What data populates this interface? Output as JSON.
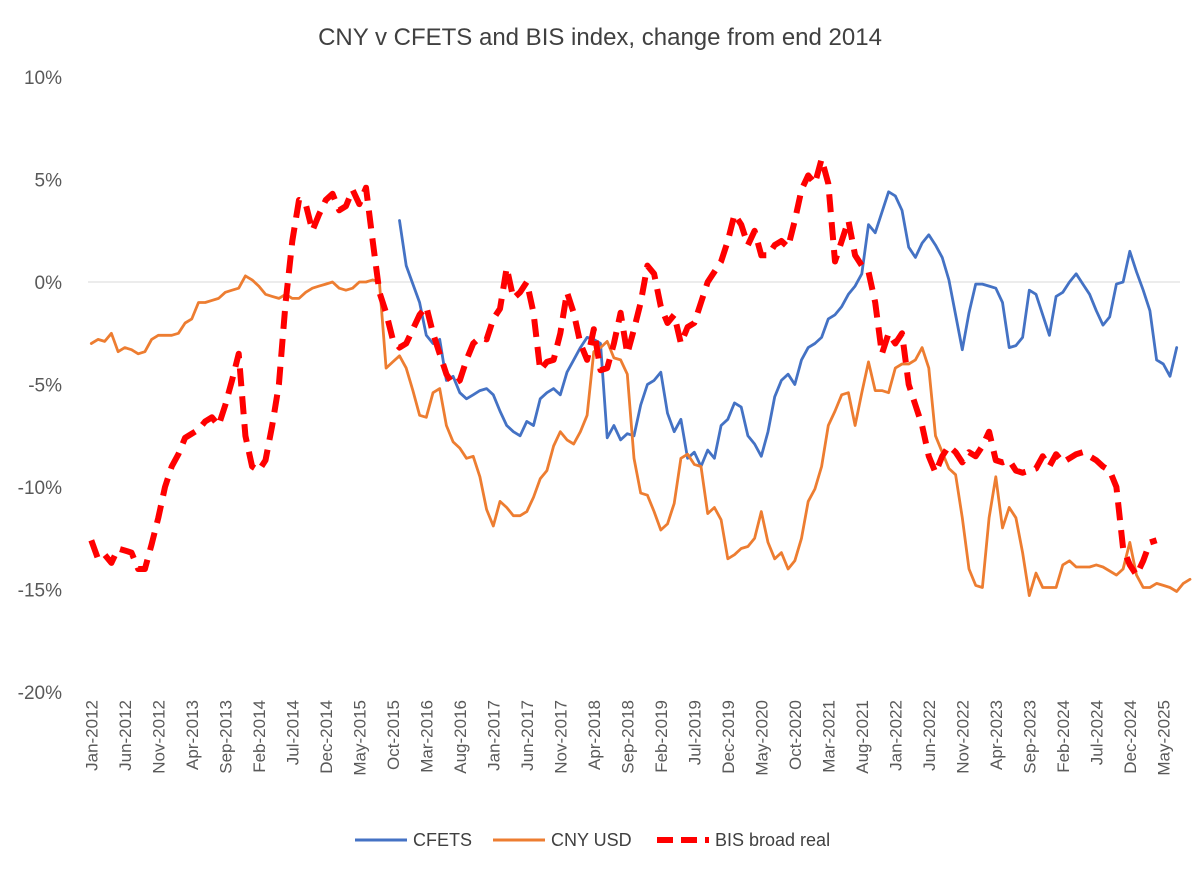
{
  "chart_data": {
    "type": "line",
    "title": "CNY v CFETS and BIS index, change from end 2014",
    "xlabel": "",
    "ylabel": "",
    "ylim": [
      -20,
      10
    ],
    "y_ticks": [
      -20,
      -15,
      -10,
      -5,
      0,
      5,
      10
    ],
    "y_tick_labels": [
      "-20%",
      "-15%",
      "-10%",
      "-5%",
      "0%",
      "5%",
      "10%"
    ],
    "x_start": "Jan-2012",
    "x_count": 163,
    "x_tick_labels": [
      "Jan-2012",
      "Jun-2012",
      "Nov-2012",
      "Apr-2013",
      "Sep-2013",
      "Feb-2014",
      "Jul-2014",
      "Dec-2014",
      "May-2015",
      "Oct-2015",
      "Mar-2016",
      "Aug-2016",
      "Jan-2017",
      "Jun-2017",
      "Nov-2017",
      "Apr-2018",
      "Sep-2018",
      "Feb-2019",
      "Jul-2019",
      "Dec-2019",
      "May-2020",
      "Oct-2020",
      "Mar-2021",
      "Aug-2021",
      "Jan-2022",
      "Jun-2022",
      "Nov-2022",
      "Apr-2023",
      "Sep-2023",
      "Feb-2024",
      "Jul-2024",
      "Dec-2024",
      "May-2025"
    ],
    "legend": "bottom",
    "series": [
      {
        "name": "CFETS",
        "color": "#4472C4",
        "style": "solid",
        "start_index": 46,
        "values": [
          3.0,
          0.8,
          -0.1,
          -1.0,
          -2.6,
          -3.0,
          -2.8,
          -4.8,
          -4.6,
          -5.4,
          -5.7,
          -5.5,
          -5.3,
          -5.2,
          -5.5,
          -6.3,
          -7.0,
          -7.3,
          -7.5,
          -6.8,
          -7.0,
          -5.7,
          -5.4,
          -5.2,
          -5.5,
          -4.4,
          -3.8,
          -3.2,
          -2.7,
          -2.8,
          -3.0,
          -7.6,
          -7.0,
          -7.7,
          -7.4,
          -7.5,
          -6.0,
          -5.0,
          -4.8,
          -4.4,
          -6.4,
          -7.3,
          -6.7,
          -8.6,
          -8.3,
          -9.0,
          -8.2,
          -8.6,
          -7.0,
          -6.7,
          -5.9,
          -6.1,
          -7.5,
          -7.9,
          -8.5,
          -7.3,
          -5.6,
          -4.8,
          -4.5,
          -5.0,
          -3.8,
          -3.2,
          -3.0,
          -2.7,
          -1.8,
          -1.6,
          -1.2,
          -0.6,
          -0.2,
          0.4,
          2.8,
          2.4,
          3.4,
          4.4,
          4.2,
          3.5,
          1.7,
          1.2,
          1.9,
          2.3,
          1.8,
          1.2,
          0.1,
          -1.6,
          -3.3,
          -1.5,
          -0.1,
          -0.1,
          -0.2,
          -0.3,
          -1.0,
          -3.2,
          -3.1,
          -2.7,
          -0.4,
          -0.6,
          -1.6,
          -2.6,
          -0.7,
          -0.5,
          0.0,
          0.4,
          -0.1,
          -0.6,
          -1.4,
          -2.1,
          -1.7,
          -0.1,
          0.0,
          1.5,
          0.5,
          -0.4,
          -1.4,
          -3.8,
          -4.0,
          -4.6,
          -3.2
        ]
      },
      {
        "name": "CNY USD",
        "color": "#ED7D31",
        "style": "solid",
        "start_index": 0,
        "values": [
          -3.0,
          -2.8,
          -2.9,
          -2.5,
          -3.4,
          -3.2,
          -3.3,
          -3.5,
          -3.4,
          -2.8,
          -2.6,
          -2.6,
          -2.6,
          -2.5,
          -2.0,
          -1.8,
          -1.0,
          -1.0,
          -0.9,
          -0.8,
          -0.5,
          -0.4,
          -0.3,
          0.3,
          0.1,
          -0.2,
          -0.6,
          -0.7,
          -0.8,
          -0.6,
          -0.8,
          -0.8,
          -0.5,
          -0.3,
          -0.2,
          -0.1,
          0.0,
          -0.3,
          -0.4,
          -0.3,
          0.0,
          0.0,
          0.1,
          0.0,
          -4.2,
          -3.9,
          -3.6,
          -4.2,
          -5.3,
          -6.5,
          -6.6,
          -5.4,
          -5.2,
          -7.0,
          -7.8,
          -8.1,
          -8.6,
          -8.5,
          -9.5,
          -11.1,
          -11.9,
          -10.7,
          -11.0,
          -11.4,
          -11.4,
          -11.2,
          -10.5,
          -9.6,
          -9.2,
          -8.0,
          -7.3,
          -7.7,
          -7.9,
          -7.3,
          -6.5,
          -3.4,
          -3.2,
          -2.9,
          -3.7,
          -3.8,
          -4.5,
          -8.6,
          -10.3,
          -10.4,
          -11.2,
          -12.1,
          -11.8,
          -10.8,
          -8.6,
          -8.4,
          -8.9,
          -9.0,
          -11.3,
          -11.0,
          -11.6,
          -13.5,
          -13.3,
          -13.0,
          -12.9,
          -12.5,
          -11.2,
          -12.7,
          -13.5,
          -13.2,
          -14.0,
          -13.6,
          -12.5,
          -10.7,
          -10.1,
          -9.0,
          -7.0,
          -6.3,
          -5.5,
          -5.4,
          -7.0,
          -5.4,
          -3.9,
          -5.3,
          -5.3,
          -5.4,
          -4.2,
          -4.0,
          -4.0,
          -3.8,
          -3.2,
          -4.2,
          -7.5,
          -8.3,
          -9.1,
          -9.4,
          -11.5,
          -14.0,
          -14.8,
          -14.9,
          -11.5,
          -9.5,
          -12.0,
          -11.0,
          -11.5,
          -13.2,
          -15.3,
          -14.2,
          -14.9,
          -14.9,
          -14.9,
          -13.8,
          -13.6,
          -13.9,
          -13.9,
          -13.9,
          -13.8,
          -13.9,
          -14.1,
          -14.3,
          -14.0,
          -12.7,
          -14.3,
          -14.9,
          -14.9,
          -14.7,
          -14.8,
          -14.9,
          -15.1,
          -14.7,
          -14.5
        ]
      },
      {
        "name": "BIS broad real",
        "color": "#FF0000",
        "style": "dashed",
        "start_index": 0,
        "values": [
          -12.6,
          -13.5,
          -13.3,
          -13.7,
          -13.0,
          -13.1,
          -13.2,
          -14.0,
          -14.0,
          -12.8,
          -11.5,
          -10.0,
          -9.0,
          -8.4,
          -7.6,
          -7.4,
          -7.2,
          -6.8,
          -6.6,
          -7.0,
          -6.0,
          -4.8,
          -3.5,
          -7.5,
          -9.0,
          -9.2,
          -8.7,
          -7.0,
          -5.0,
          -1.0,
          2.0,
          4.0,
          3.8,
          2.5,
          3.3,
          4.0,
          4.3,
          3.5,
          3.7,
          4.5,
          3.8,
          4.6,
          2.0,
          -0.5,
          -1.5,
          -2.8,
          -3.2,
          -3.0,
          -2.3,
          -1.6,
          -1.2,
          -2.5,
          -3.5,
          -4.5,
          -5.0,
          -4.8,
          -3.8,
          -3.0,
          -2.7,
          -2.8,
          -1.8,
          -1.3,
          0.7,
          -0.8,
          -0.5,
          0.0,
          -1.5,
          -4.3,
          -3.9,
          -3.8,
          -2.5,
          -0.5,
          -1.5,
          -3.0,
          -3.8,
          -2.3,
          -4.3,
          -4.2,
          -3.0,
          -1.5,
          -3.5,
          -2.3,
          -1.0,
          0.8,
          0.4,
          -1.2,
          -2.0,
          -1.6,
          -3.0,
          -2.2,
          -2.0,
          -1.0,
          0.0,
          0.5,
          1.0,
          2.0,
          3.3,
          2.8,
          1.8,
          2.5,
          1.3,
          1.3,
          1.8,
          2.0,
          1.7,
          3.0,
          4.5,
          5.2,
          4.8,
          6.0,
          4.8,
          1.0,
          2.0,
          3.0,
          1.3,
          0.8,
          0.5,
          -1.0,
          -3.5,
          -2.5,
          -3.0,
          -2.5,
          -5.0,
          -6.0,
          -7.0,
          -8.5,
          -9.3,
          -8.5,
          -8.0,
          -8.3,
          -8.8,
          -8.3,
          -8.5,
          -8.0,
          -7.3,
          -8.7,
          -8.8,
          -8.7,
          -9.2,
          -9.3,
          -9.2,
          -9.1,
          -8.5,
          -9.0,
          -8.4,
          -8.8,
          -8.6,
          -8.4,
          -8.3,
          -8.5,
          -8.7,
          -9.0,
          -9.2,
          -10.0,
          -13.0,
          -13.8,
          -14.3,
          -13.6,
          -12.7,
          -12.6
        ]
      }
    ]
  }
}
